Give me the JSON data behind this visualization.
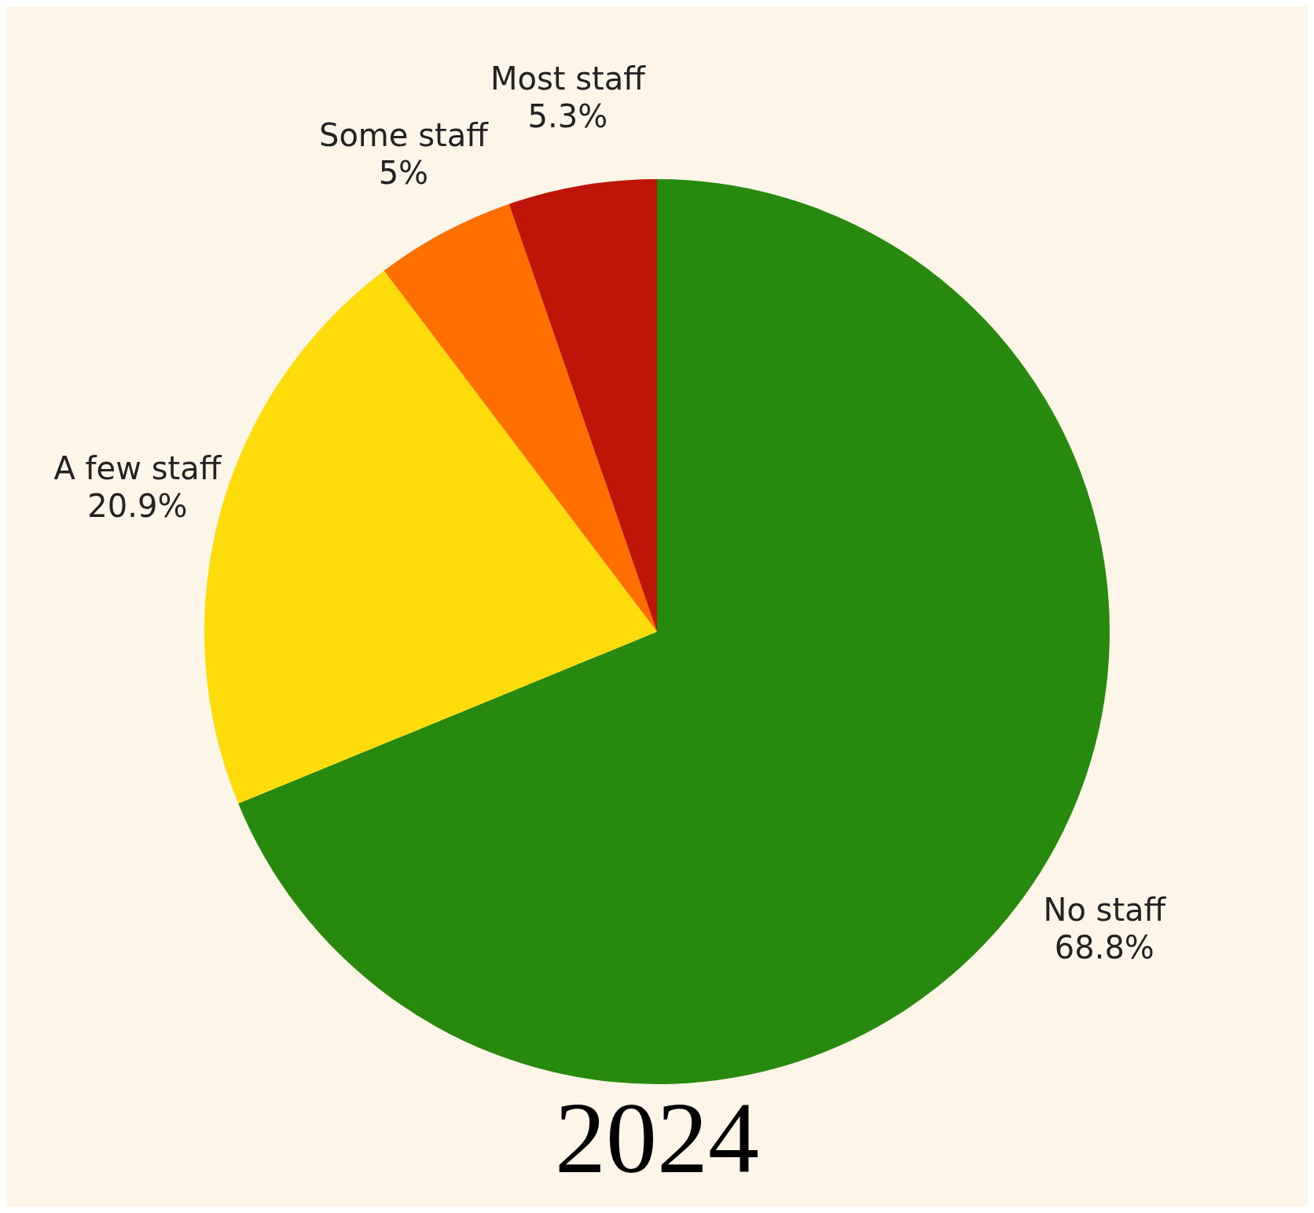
{
  "chart_data": {
    "type": "pie",
    "title": "2024",
    "categories": [
      "No staff",
      "A few staff",
      "Some staff",
      "Most staff"
    ],
    "values": [
      68.8,
      20.9,
      5,
      5.3
    ],
    "value_labels": [
      "68.8%",
      "20.9%",
      "5%",
      "5.3%"
    ],
    "colors": [
      "#28890f",
      "#fedb0b",
      "#ff6f00",
      "#bd1608"
    ],
    "legend": false
  }
}
